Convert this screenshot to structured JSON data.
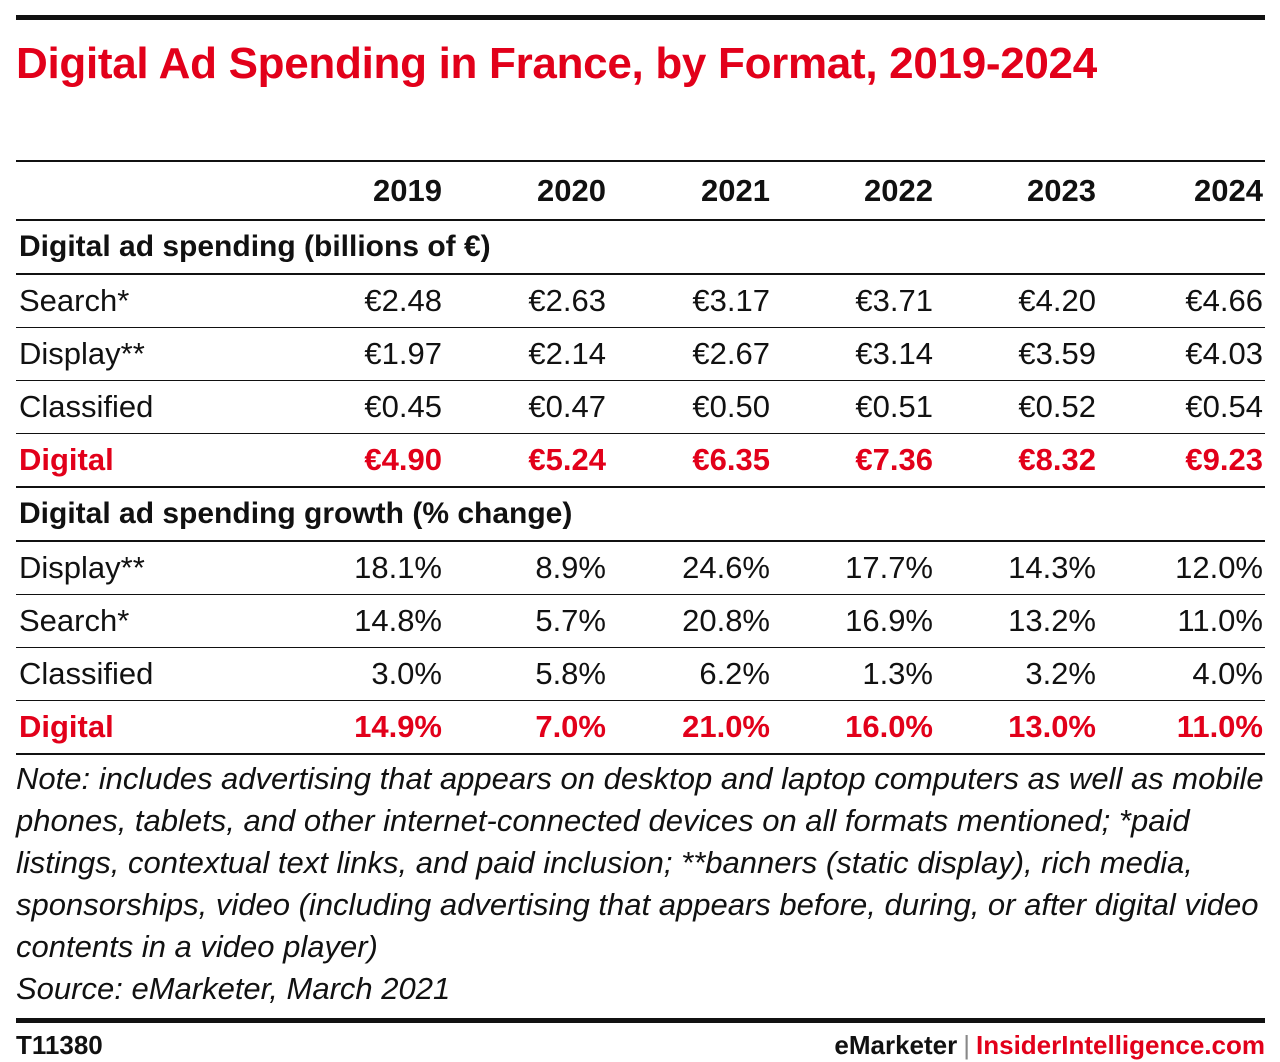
{
  "title": "Digital Ad Spending in France, by Format, 2019-2024",
  "chart_data": {
    "type": "table",
    "title": "Digital Ad Spending in France, by Format, 2019-2024",
    "columns": [
      "2019",
      "2020",
      "2021",
      "2022",
      "2023",
      "2024"
    ],
    "sections": [
      {
        "heading": "Digital ad spending (billions of €)",
        "rows": [
          {
            "label": "Search*",
            "values": [
              "€2.48",
              "€2.63",
              "€3.17",
              "€3.71",
              "€4.20",
              "€4.66"
            ]
          },
          {
            "label": "Display**",
            "values": [
              "€1.97",
              "€2.14",
              "€2.67",
              "€3.14",
              "€3.59",
              "€4.03"
            ]
          },
          {
            "label": "Classified",
            "values": [
              "€0.45",
              "€0.47",
              "€0.50",
              "€0.51",
              "€0.52",
              "€0.54"
            ]
          },
          {
            "label": "Digital",
            "values": [
              "€4.90",
              "€5.24",
              "€6.35",
              "€7.36",
              "€8.32",
              "€9.23"
            ]
          }
        ]
      },
      {
        "heading": "Digital ad spending growth (% change)",
        "rows": [
          {
            "label": "Display**",
            "values": [
              "18.1%",
              "8.9%",
              "24.6%",
              "17.7%",
              "14.3%",
              "12.0%"
            ]
          },
          {
            "label": "Search*",
            "values": [
              "14.8%",
              "5.7%",
              "20.8%",
              "16.9%",
              "13.2%",
              "11.0%"
            ]
          },
          {
            "label": "Classified",
            "values": [
              "3.0%",
              "5.8%",
              "6.2%",
              "1.3%",
              "3.2%",
              "4.0%"
            ]
          },
          {
            "label": "Digital",
            "values": [
              "14.9%",
              "7.0%",
              "21.0%",
              "16.0%",
              "13.0%",
              "11.0%"
            ]
          }
        ]
      }
    ]
  },
  "note": "Note: includes advertising that appears on desktop and laptop computers as well as mobile phones, tablets, and other internet-connected devices on all formats mentioned; *paid listings, contextual text links, and paid inclusion; **banners (static display), rich media, sponsorships, video (including advertising that appears before, during, or after digital video contents in a video player)",
  "source": "Source: eMarketer, March 2021",
  "footer": {
    "code": "T11380",
    "brand_left": "eMarketer",
    "separator": "|",
    "brand_right": "InsiderIntelligence.com"
  },
  "colors": {
    "accent": "#e2001a",
    "text": "#111111"
  }
}
